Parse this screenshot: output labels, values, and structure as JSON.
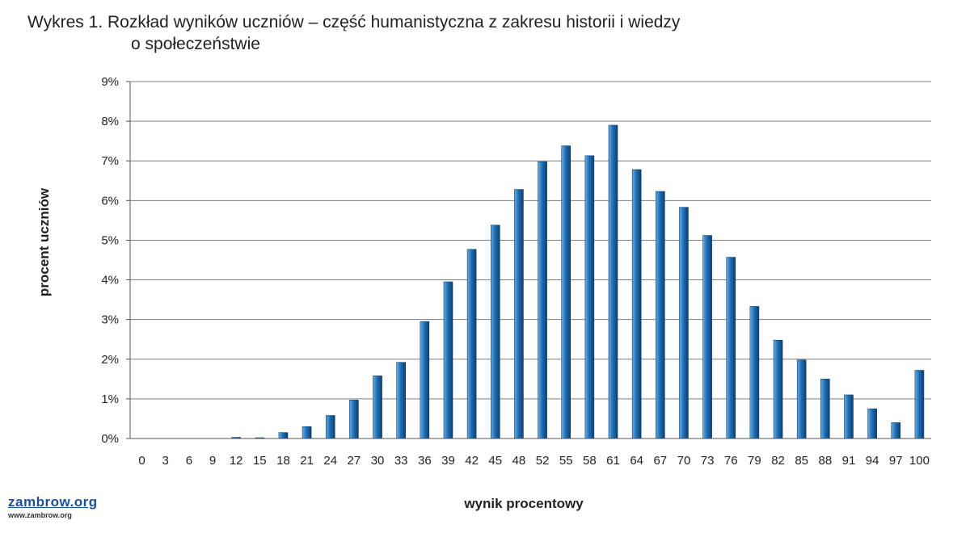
{
  "title_line1": "Wykres 1. Rozkład wyników uczniów – część humanistyczna z zakresu historii i wiedzy",
  "title_line2": "o społeczeństwie",
  "logo": {
    "main": "zambrow.org",
    "sub": "www.zambrow.org"
  },
  "colors": {
    "bar": "#1f6fb4",
    "bar_light": "#6aaee6",
    "bar_dark": "#0d3f70",
    "grid": "#7f7f7f"
  },
  "chart_data": {
    "type": "bar",
    "xlabel": "wynik procentowy",
    "ylabel": "procent  uczniów",
    "ylim": [
      0,
      9
    ],
    "y_unit": "%",
    "yticks": [
      "0%",
      "1%",
      "2%",
      "3%",
      "4%",
      "5%",
      "6%",
      "7%",
      "8%",
      "9%"
    ],
    "grid": true,
    "legend": "none",
    "categories": [
      "0",
      "3",
      "6",
      "9",
      "12",
      "15",
      "18",
      "21",
      "24",
      "27",
      "30",
      "33",
      "36",
      "39",
      "42",
      "45",
      "48",
      "52",
      "55",
      "58",
      "61",
      "64",
      "67",
      "70",
      "73",
      "76",
      "79",
      "82",
      "85",
      "88",
      "91",
      "94",
      "97",
      "100"
    ],
    "values": [
      0,
      0,
      0,
      0,
      0.03,
      0.02,
      0.15,
      0.3,
      0.58,
      0.97,
      1.58,
      1.92,
      2.95,
      3.95,
      4.77,
      5.38,
      6.28,
      6.98,
      7.38,
      7.13,
      7.9,
      6.78,
      6.23,
      5.83,
      5.12,
      4.57,
      3.33,
      2.48,
      1.98,
      1.5,
      1.1,
      0.75,
      0.4,
      1.72
    ]
  }
}
